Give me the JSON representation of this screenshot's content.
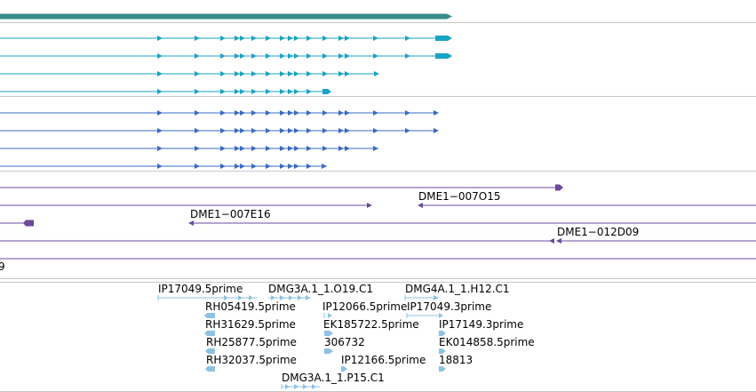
{
  "colors": {
    "gene": "#3a8a8a",
    "transcript": "#1aa3c4",
    "cds_model": "#3a6bc4",
    "cdna": "#6a4a9c",
    "est": "#8fc2e2",
    "divider": "#c8c8c8"
  },
  "tracks": {
    "cdna_clones": [
      {
        "label": "DME1−007O15"
      },
      {
        "label": "DME1−007E16"
      },
      {
        "label": "DME1−012D09"
      },
      {
        "label": "9"
      }
    ],
    "est_reads": [
      {
        "label": "IP17049.5prime"
      },
      {
        "label": "DMG3A.1_1.O19.C1"
      },
      {
        "label": "DMG4A.1_1.H12.C1"
      },
      {
        "label": "RH05419.5prime"
      },
      {
        "label": "IP12066.5prime"
      },
      {
        "label": "IP17049.3prime"
      },
      {
        "label": "RH31629.5prime"
      },
      {
        "label": "EK185722.5prime"
      },
      {
        "label": "IP17149.3prime"
      },
      {
        "label": "RH25877.5prime"
      },
      {
        "label": "306732"
      },
      {
        "label": "EK014858.5prime"
      },
      {
        "label": "RH32037.5prime"
      },
      {
        "label": "IP12166.5prime"
      },
      {
        "label": "18813"
      },
      {
        "label": "DMG3A.1_1.P15.C1"
      }
    ]
  }
}
